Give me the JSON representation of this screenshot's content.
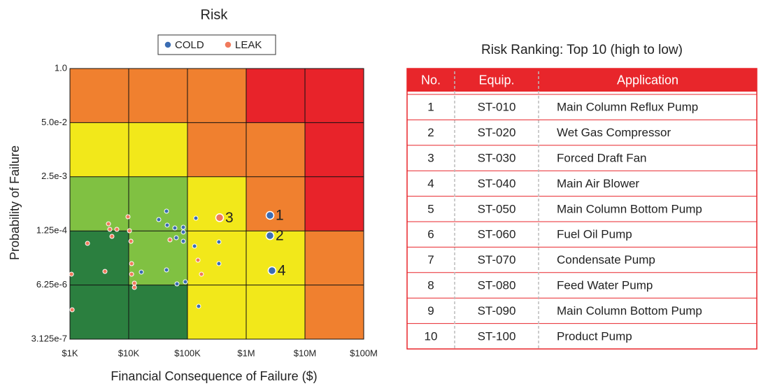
{
  "chart_data": {
    "type": "scatter",
    "title": "Risk",
    "xlabel": "Financial Consequence of Failure ($)",
    "ylabel": "Probability of Failure",
    "xscale": "log",
    "yscale": "log",
    "grid": true,
    "legend": "top",
    "xlim": [
      1000,
      100000000
    ],
    "xticks": [
      {
        "value": 1000,
        "label": "$1K"
      },
      {
        "value": 10000,
        "label": "$10K"
      },
      {
        "value": 100000,
        "label": "$100K"
      },
      {
        "value": 1000000,
        "label": "$1M"
      },
      {
        "value": 10000000,
        "label": "$10M"
      },
      {
        "value": 100000000,
        "label": "$100M"
      }
    ],
    "ylim": [
      3.125e-07,
      1.0
    ],
    "yticks": [
      {
        "value": 3.125e-07,
        "label": "3.125e-7"
      },
      {
        "value": 6.25e-06,
        "label": "6.25e-6"
      },
      {
        "value": 0.000125,
        "label": "1.25e-4"
      },
      {
        "value": 0.0025,
        "label": "2.5e-3"
      },
      {
        "value": 0.05,
        "label": "5.0e-2"
      },
      {
        "value": 1.0,
        "label": "1.0"
      }
    ],
    "zone_colors": [
      [
        "#2b7f3f",
        "#2b7f3f",
        "#f2e81a",
        "#f2e81a",
        "#f0802f"
      ],
      [
        "#2b7f3f",
        "#80c142",
        "#f2e81a",
        "#f2e81a",
        "#f0802f"
      ],
      [
        "#80c142",
        "#80c142",
        "#f2e81a",
        "#f0802f",
        "#e8232a"
      ],
      [
        "#f2e81a",
        "#f2e81a",
        "#f0802f",
        "#f0802f",
        "#e8232a"
      ],
      [
        "#f0802f",
        "#f0802f",
        "#f0802f",
        "#e8232a",
        "#e8232a"
      ]
    ],
    "series": [
      {
        "name": "COLD",
        "color": "#3b6db3",
        "x": [
          44000,
          32500,
          45200,
          61000,
          85000,
          85000,
          64500,
          85000,
          139000,
          132000,
          343000,
          343000,
          44000,
          16400,
          92000,
          66300,
          155000
        ],
        "values": [
          0.000372,
          0.000234,
          0.000172,
          0.000147,
          0.000153,
          0.000117,
          8.55e-05,
          7.05e-05,
          0.000253,
          5.38e-05,
          6.78e-05,
          2.04e-05,
          1.44e-05,
          1.28e-05,
          7.46e-06,
          6.65e-06,
          1.93e-06
        ]
      },
      {
        "name": "LEAK",
        "color": "#f07a5c",
        "x": [
          4520,
          9730,
          4770,
          6280,
          10300,
          5180,
          10900,
          1990,
          50400,
          1060,
          3940,
          11200,
          11200,
          12500,
          12500,
          151000,
          173000,
          1090
        ],
        "values": [
          0.000185,
          0.000273,
          0.000136,
          0.000136,
          0.000126,
          9.24e-05,
          7.05e-05,
          6.28e-05,
          7.62e-05,
          1.14e-05,
          1.33e-05,
          2.04e-05,
          1.14e-05,
          6.92e-06,
          5.48e-06,
          2.48e-05,
          1.14e-05,
          1.59e-06
        ]
      }
    ],
    "annotations": [
      {
        "text": "1",
        "series": "COLD",
        "x": 2540000,
        "y": 0.000295
      },
      {
        "text": "2",
        "series": "COLD",
        "x": 2540000,
        "y": 9.6e-05
      },
      {
        "text": "3",
        "series": "LEAK",
        "x": 353000,
        "y": 0.00026
      },
      {
        "text": "4",
        "series": "COLD",
        "x": 2750000,
        "y": 1.39e-05
      }
    ]
  },
  "table": {
    "title": "Risk Ranking: Top 10 (high to low)",
    "header": [
      "No.",
      "Equip.",
      "Application"
    ],
    "rows": [
      [
        1,
        "ST-010",
        "Main Column Reflux Pump"
      ],
      [
        2,
        "ST-020",
        "Wet Gas Compressor"
      ],
      [
        3,
        "ST-030",
        "Forced Draft Fan"
      ],
      [
        4,
        "ST-040",
        "Main Air Blower"
      ],
      [
        5,
        "ST-050",
        "Main Column Bottom Pump"
      ],
      [
        6,
        "ST-060",
        "Fuel Oil Pump"
      ],
      [
        7,
        "ST-070",
        "Condensate Pump"
      ],
      [
        8,
        "ST-080",
        "Feed Water Pump"
      ],
      [
        9,
        "ST-090",
        "Main Column Bottom Pump"
      ],
      [
        10,
        "ST-100",
        "Product Pump"
      ]
    ]
  }
}
